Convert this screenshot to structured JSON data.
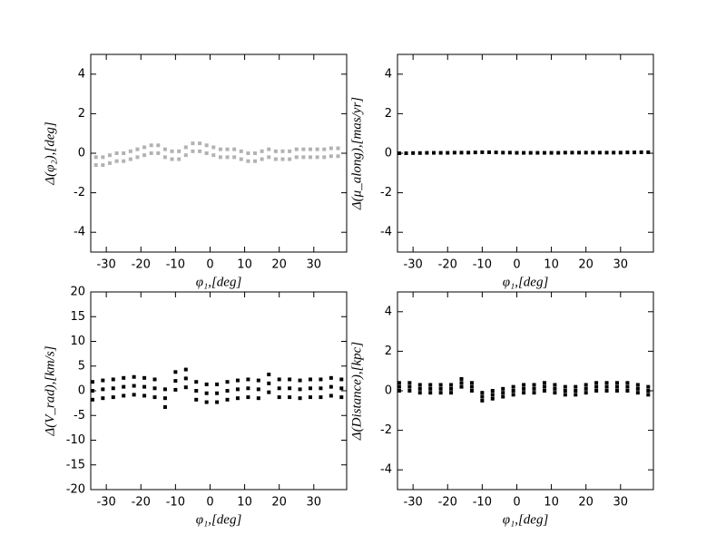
{
  "chart_data": [
    {
      "type": "scatter",
      "xlabel": "φ₁,[deg]",
      "ylabel": "Δ(φ₂),[deg]",
      "color": "#000000",
      "alpha": 0.3,
      "xlim": [
        -34.5,
        39.5
      ],
      "ylim": [
        -5,
        5
      ],
      "xticks": [
        -30,
        -20,
        -10,
        0,
        10,
        20,
        30
      ],
      "yticks": [
        -4,
        -2,
        0,
        2,
        4
      ],
      "x": [
        -33,
        -33,
        -31,
        -31,
        -29,
        -29,
        -27,
        -27,
        -25,
        -25,
        -23,
        -23,
        -21,
        -21,
        -19,
        -19,
        -17,
        -17,
        -15,
        -15,
        -13,
        -13,
        -11,
        -11,
        -9,
        -9,
        -7,
        -7,
        -5,
        -5,
        -3,
        -3,
        -1,
        -1,
        1,
        1,
        3,
        3,
        5,
        5,
        7,
        7,
        9,
        9,
        11,
        11,
        13,
        13,
        15,
        15,
        17,
        17,
        19,
        19,
        21,
        21,
        23,
        23,
        25,
        25,
        27,
        27,
        29,
        29,
        31,
        31,
        33,
        33,
        35,
        35,
        37,
        37
      ],
      "y": [
        -0.2,
        -0.6,
        -0.2,
        -0.6,
        -0.1,
        -0.5,
        0,
        -0.4,
        0,
        -0.4,
        0.1,
        -0.3,
        0.2,
        -0.2,
        0.3,
        -0.1,
        0.4,
        0,
        0.4,
        0,
        0.2,
        -0.2,
        0.1,
        -0.3,
        0.1,
        -0.3,
        0.3,
        -0.1,
        0.5,
        0.1,
        0.5,
        0.1,
        0.4,
        0,
        0.3,
        -0.1,
        0.2,
        -0.2,
        0.2,
        -0.2,
        0.2,
        -0.2,
        0.1,
        -0.3,
        0,
        -0.4,
        0,
        -0.4,
        0.1,
        -0.3,
        0.2,
        -0.2,
        0.1,
        -0.3,
        0.1,
        -0.3,
        0.1,
        -0.3,
        0.2,
        -0.2,
        0.2,
        -0.2,
        0.2,
        -0.2,
        0.2,
        -0.2,
        0.2,
        -0.2,
        0.25,
        -0.15,
        0.25,
        -0.15
      ]
    },
    {
      "type": "scatter",
      "xlabel": "φ₁,[deg]",
      "ylabel": "Δ(μ_along),[mas/yr]",
      "color": "#000000",
      "alpha": 1,
      "xlim": [
        -34.5,
        39.5
      ],
      "ylim": [
        -5,
        5
      ],
      "xticks": [
        -30,
        -20,
        -10,
        0,
        10,
        20,
        30
      ],
      "yticks": [
        -4,
        -2,
        0,
        2,
        4
      ],
      "x": [
        -34,
        -32,
        -30,
        -28,
        -26,
        -24,
        -22,
        -20,
        -18,
        -16,
        -14,
        -12,
        -10,
        -8,
        -6,
        -4,
        -2,
        0,
        2,
        4,
        6,
        8,
        10,
        12,
        14,
        16,
        18,
        20,
        22,
        24,
        26,
        28,
        30,
        32,
        34,
        36,
        38
      ],
      "y": [
        0,
        0,
        0.01,
        0.01,
        0.02,
        0.02,
        0.02,
        0.02,
        0.03,
        0.03,
        0.03,
        0.04,
        0.05,
        0.05,
        0.04,
        0.03,
        0.03,
        0.02,
        0.02,
        0.02,
        0.02,
        0.02,
        0.02,
        0.02,
        0.03,
        0.03,
        0.03,
        0.03,
        0.03,
        0.03,
        0.03,
        0.03,
        0.03,
        0.04,
        0.04,
        0.05,
        0.05
      ]
    },
    {
      "type": "scatter",
      "xlabel": "φ₁,[deg]",
      "ylabel": "Δ(V_rad),[km/s]",
      "color": "#000000",
      "alpha": 1,
      "xlim": [
        -34.5,
        39.5
      ],
      "ylim": [
        -20,
        20
      ],
      "xticks": [
        -30,
        -20,
        -10,
        0,
        10,
        20,
        30
      ],
      "yticks": [
        -20,
        -15,
        -10,
        -5,
        0,
        5,
        10,
        15,
        20
      ],
      "x": [
        -34,
        -34,
        -34,
        -31,
        -31,
        -31,
        -28,
        -28,
        -28,
        -25,
        -25,
        -25,
        -22,
        -22,
        -22,
        -19,
        -19,
        -19,
        -16,
        -16,
        -16,
        -13,
        -13,
        -13,
        -10,
        -10,
        -10,
        -7,
        -7,
        -7,
        -4,
        -4,
        -4,
        -1,
        -1,
        -1,
        2,
        2,
        2,
        5,
        5,
        5,
        8,
        8,
        8,
        11,
        11,
        11,
        14,
        14,
        14,
        17,
        17,
        17,
        20,
        20,
        20,
        23,
        23,
        23,
        26,
        26,
        26,
        29,
        29,
        29,
        32,
        32,
        32,
        35,
        35,
        35,
        38,
        38,
        38
      ],
      "y": [
        1.8,
        0,
        -1.8,
        2.1,
        0.3,
        -1.5,
        2.3,
        0.5,
        -1.3,
        2.6,
        0.8,
        -1,
        2.8,
        1,
        -0.8,
        2.6,
        0.8,
        -1,
        2.3,
        0.5,
        -1.3,
        0.3,
        -1.5,
        -3.3,
        3.8,
        2,
        0.2,
        4.3,
        2.5,
        0.7,
        1.8,
        0,
        -1.8,
        1.3,
        -0.5,
        -2.3,
        1.3,
        -0.5,
        -2.3,
        1.8,
        0,
        -1.8,
        2.1,
        0.3,
        -1.5,
        2.3,
        0.5,
        -1.3,
        2.1,
        0.3,
        -1.5,
        3.3,
        1.5,
        -0.3,
        2.3,
        0.5,
        -1.3,
        2.3,
        0.5,
        -1.3,
        2.1,
        0.3,
        -1.5,
        2.3,
        0.5,
        -1.3,
        2.3,
        0.5,
        -1.3,
        2.6,
        0.8,
        -1,
        2.3,
        0.5,
        -1.3
      ]
    },
    {
      "type": "scatter",
      "xlabel": "φ₁,[deg]",
      "ylabel": "Δ(Distance),[kpc]",
      "color": "#000000",
      "alpha": 1,
      "xlim": [
        -34.5,
        39.5
      ],
      "ylim": [
        -5,
        5
      ],
      "xticks": [
        -30,
        -20,
        -10,
        0,
        10,
        20,
        30
      ],
      "yticks": [
        -4,
        -2,
        0,
        2,
        4
      ],
      "x": [
        -34,
        -34,
        -34,
        -31,
        -31,
        -31,
        -28,
        -28,
        -28,
        -25,
        -25,
        -25,
        -22,
        -22,
        -22,
        -19,
        -19,
        -19,
        -16,
        -16,
        -16,
        -13,
        -13,
        -13,
        -10,
        -10,
        -10,
        -7,
        -7,
        -7,
        -4,
        -4,
        -4,
        -1,
        -1,
        -1,
        2,
        2,
        2,
        5,
        5,
        5,
        8,
        8,
        8,
        11,
        11,
        11,
        14,
        14,
        14,
        17,
        17,
        17,
        20,
        20,
        20,
        23,
        23,
        23,
        26,
        26,
        26,
        29,
        29,
        29,
        32,
        32,
        32,
        35,
        35,
        35,
        38,
        38,
        38
      ],
      "y": [
        0.4,
        0.2,
        0,
        0.4,
        0.2,
        0,
        0.3,
        0.1,
        -0.1,
        0.3,
        0.1,
        -0.1,
        0.3,
        0.1,
        -0.1,
        0.3,
        0.1,
        -0.1,
        0.6,
        0.4,
        0.2,
        0.4,
        0.2,
        0,
        -0.1,
        -0.3,
        -0.5,
        0,
        -0.2,
        -0.4,
        0.1,
        -0.1,
        -0.3,
        0.2,
        0,
        -0.2,
        0.3,
        0.1,
        -0.1,
        0.3,
        0.1,
        -0.1,
        0.4,
        0.2,
        0,
        0.3,
        0.1,
        -0.1,
        0.2,
        0,
        -0.2,
        0.2,
        0,
        -0.2,
        0.3,
        0.1,
        -0.1,
        0.4,
        0.2,
        0,
        0.4,
        0.2,
        0,
        0.4,
        0.2,
        0,
        0.4,
        0.2,
        0,
        0.3,
        0.1,
        -0.1,
        0.2,
        0,
        -0.2
      ]
    }
  ]
}
